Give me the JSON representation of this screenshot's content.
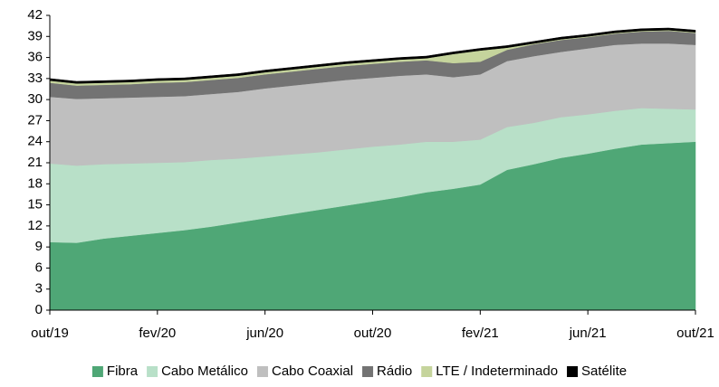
{
  "chart_data": {
    "type": "stacked-area",
    "categories": [
      "out/19",
      null,
      null,
      null,
      "fev/20",
      null,
      null,
      null,
      "jun/20",
      null,
      null,
      null,
      "out/20",
      null,
      null,
      null,
      "fev/21",
      null,
      null,
      null,
      "jun/21",
      null,
      null,
      null,
      "out/21"
    ],
    "series": [
      {
        "name": "Fibra",
        "color": "#4fa776",
        "values": [
          9.7,
          9.6,
          10.2,
          10.6,
          11.0,
          11.4,
          11.9,
          12.5,
          13.1,
          13.7,
          14.3,
          14.9,
          15.5,
          16.1,
          16.8,
          17.3,
          17.9,
          20.0,
          20.8,
          21.7,
          22.3,
          23.0,
          23.6,
          23.8,
          24.0
        ]
      },
      {
        "name": "Cabo Metálico",
        "color": "#b8e0c8",
        "values": [
          11.2,
          11.0,
          10.6,
          10.3,
          10.0,
          9.7,
          9.5,
          9.1,
          8.8,
          8.5,
          8.2,
          8.0,
          7.8,
          7.5,
          7.2,
          6.7,
          6.4,
          6.1,
          5.9,
          5.8,
          5.6,
          5.4,
          5.2,
          4.9,
          4.6
        ]
      },
      {
        "name": "Cabo Coaxial",
        "color": "#bfbfbf",
        "values": [
          9.5,
          9.5,
          9.4,
          9.4,
          9.4,
          9.4,
          9.4,
          9.5,
          9.7,
          9.8,
          9.9,
          9.9,
          9.8,
          9.8,
          9.6,
          9.2,
          9.3,
          9.4,
          9.5,
          9.3,
          9.4,
          9.4,
          9.2,
          9.3,
          9.2
        ]
      },
      {
        "name": "Rádio",
        "color": "#737373",
        "values": [
          2.0,
          1.9,
          1.9,
          1.9,
          2.0,
          2.0,
          2.0,
          2.0,
          2.0,
          2.0,
          2.0,
          2.0,
          2.0,
          2.0,
          2.0,
          2.0,
          1.8,
          1.6,
          1.7,
          1.7,
          1.6,
          1.6,
          1.7,
          1.8,
          1.7
        ]
      },
      {
        "name": "LTE / Indeterminado",
        "color": "#c5d49c",
        "values": [
          0.3,
          0.3,
          0.3,
          0.3,
          0.3,
          0.3,
          0.3,
          0.3,
          0.3,
          0.3,
          0.3,
          0.3,
          0.3,
          0.3,
          0.3,
          1.3,
          1.6,
          0.3,
          0.1,
          0.1,
          0.1,
          0.1,
          0.1,
          0.1,
          0.1
        ]
      },
      {
        "name": "Satélite",
        "color": "#000000",
        "values": [
          0.3,
          0.3,
          0.3,
          0.3,
          0.3,
          0.3,
          0.3,
          0.3,
          0.3,
          0.3,
          0.3,
          0.3,
          0.3,
          0.3,
          0.3,
          0.3,
          0.3,
          0.3,
          0.3,
          0.3,
          0.3,
          0.3,
          0.3,
          0.3,
          0.3
        ]
      }
    ],
    "ylim": [
      0,
      42
    ],
    "yticks": [
      0,
      3,
      6,
      9,
      12,
      15,
      18,
      21,
      24,
      27,
      30,
      33,
      36,
      39,
      42
    ],
    "grid": false,
    "legend": "bottom"
  }
}
